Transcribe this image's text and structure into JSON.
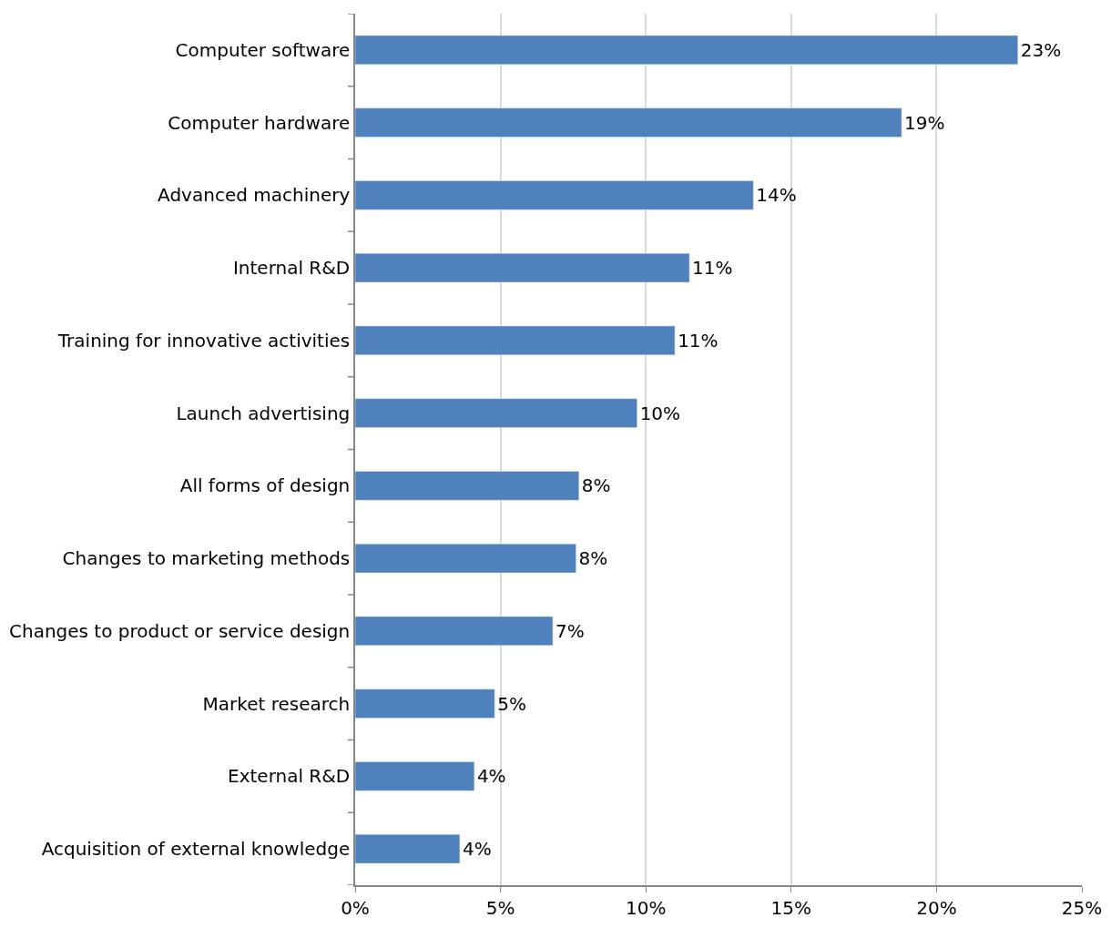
{
  "chart_data": {
    "type": "bar",
    "orientation": "horizontal",
    "categories": [
      "Computer software",
      "Computer hardware",
      "Advanced machinery",
      "Internal R&D",
      "Training for innovative activities",
      "Launch advertising",
      "All forms of design",
      "Changes to marketing methods",
      "Changes to product or service design",
      "Market research",
      "External R&D",
      "Acquisition of external knowledge"
    ],
    "values": [
      22.8,
      18.8,
      13.7,
      11.5,
      11.0,
      9.7,
      7.7,
      7.6,
      6.8,
      4.8,
      4.1,
      3.6
    ],
    "value_labels": [
      "23%",
      "19%",
      "14%",
      "11%",
      "11%",
      "10%",
      "8%",
      "8%",
      "7%",
      "5%",
      "4%",
      "4%"
    ],
    "color": "#4f81bd",
    "xlim": [
      0,
      25
    ],
    "xticks": [
      {
        "value": 0,
        "label": "0%"
      },
      {
        "value": 5,
        "label": "5%"
      },
      {
        "value": 10,
        "label": "10%"
      },
      {
        "value": 15,
        "label": "15%"
      },
      {
        "value": 20,
        "label": "20%"
      },
      {
        "value": 25,
        "label": "25%"
      }
    ],
    "grid": "x",
    "legend": false
  }
}
